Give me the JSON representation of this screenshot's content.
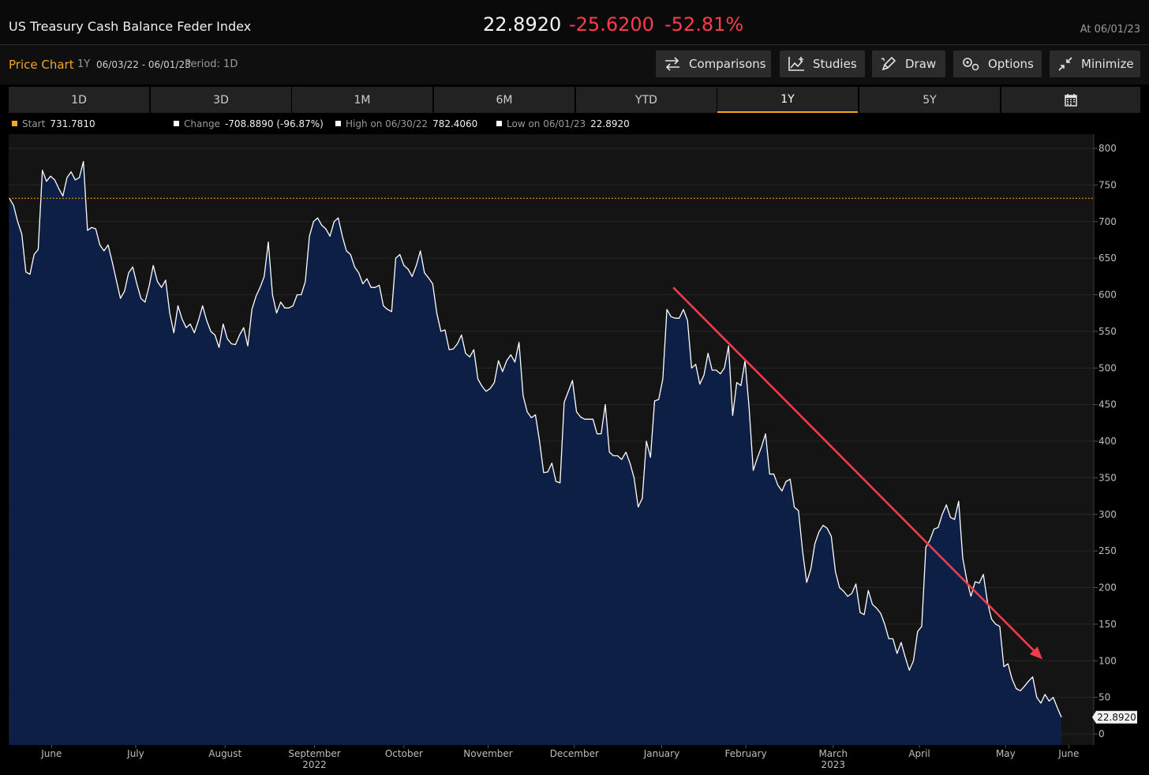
{
  "header": {
    "title": "US Treasury Cash Balance Feder Index",
    "last_value": "22.8920",
    "net_change": "-25.6200",
    "pct_change": "-52.81%",
    "as_of": "At 06/01/23"
  },
  "toolbar": {
    "label": "Price Chart",
    "period": "1Y",
    "range": "06/03/22 - 06/01/23",
    "resolution": "Period: 1D",
    "buttons": [
      {
        "label": "Comparisons",
        "icon": "swap-arrows-icon"
      },
      {
        "label": "Studies",
        "icon": "chart-plus-icon"
      },
      {
        "label": "Draw",
        "icon": "pencil-icon"
      },
      {
        "label": "Options",
        "icon": "gears-icon"
      },
      {
        "label": "Minimize",
        "icon": "minimize-arrows-icon"
      }
    ]
  },
  "tabs": [
    {
      "label": "1D",
      "active": false
    },
    {
      "label": "3D",
      "active": false
    },
    {
      "label": "1M",
      "active": false
    },
    {
      "label": "6M",
      "active": false
    },
    {
      "label": "YTD",
      "active": false
    },
    {
      "label": "1Y",
      "active": true
    },
    {
      "label": "5Y",
      "active": false
    },
    {
      "label": "",
      "icon": "calendar-icon",
      "active": false
    }
  ],
  "legend": [
    {
      "key": "Start",
      "value": "731.7810",
      "color": "#f5a623"
    },
    {
      "key": "Change",
      "value": "-708.8890 (-96.87%)",
      "color": "#ffffff"
    },
    {
      "key": "High on 06/30/22",
      "value": "782.4060",
      "color": "#ffffff"
    },
    {
      "key": "Low on 06/01/23",
      "value": "22.8920",
      "color": "#ffffff"
    }
  ],
  "colors": {
    "fill": "#0d1f44",
    "line": "#ffffff",
    "start_line": "#f5a623",
    "trend_arrow": "#ef3b4b",
    "accent": "#f5a623",
    "negative": "#ff3b4e"
  },
  "chart_data": {
    "type": "area",
    "ylim": [
      0,
      800
    ],
    "yticks": [
      0,
      50,
      100,
      150,
      200,
      250,
      300,
      350,
      400,
      450,
      500,
      550,
      600,
      650,
      700,
      750,
      800
    ],
    "grid": true,
    "start_reference": 731.781,
    "last_label": "22.8920",
    "x_tick_labels": [
      {
        "label": "June",
        "t": 0.04
      },
      {
        "label": "July",
        "t": 0.12
      },
      {
        "label": "August",
        "t": 0.205
      },
      {
        "label": "September",
        "sub": "2022",
        "t": 0.29
      },
      {
        "label": "October",
        "t": 0.375
      },
      {
        "label": "November",
        "t": 0.455
      },
      {
        "label": "December",
        "t": 0.537
      },
      {
        "label": "January",
        "t": 0.62
      },
      {
        "label": "February",
        "t": 0.7
      },
      {
        "label": "March",
        "sub": "2023",
        "t": 0.783
      },
      {
        "label": "April",
        "t": 0.865
      },
      {
        "label": "May",
        "t": 0.947
      },
      {
        "label": "June",
        "t": 1.007
      }
    ],
    "series": [
      {
        "values": [
          731.8,
          722,
          700,
          683,
          631,
          628,
          655,
          662,
          770,
          755,
          762,
          757,
          745,
          735,
          760,
          768,
          757,
          760,
          782,
          688,
          692,
          690,
          668,
          660,
          668,
          645,
          620,
          595,
          605,
          630,
          638,
          615,
          595,
          590,
          612,
          640,
          618,
          610,
          620,
          575,
          548,
          585,
          567,
          555,
          560,
          548,
          565,
          585,
          565,
          550,
          545,
          528,
          560,
          540,
          533,
          532,
          545,
          555,
          530,
          580,
          598,
          610,
          625,
          672,
          600,
          575,
          590,
          582,
          582,
          585,
          600,
          600,
          618,
          680,
          700,
          705,
          695,
          690,
          680,
          700,
          705,
          680,
          660,
          655,
          638,
          630,
          615,
          622,
          610,
          610,
          613,
          585,
          580,
          577,
          650,
          655,
          640,
          635,
          625,
          640,
          660,
          630,
          623,
          615,
          575,
          550,
          552,
          525,
          526,
          533,
          545,
          520,
          515,
          525,
          485,
          475,
          468,
          472,
          480,
          510,
          495,
          510,
          518,
          508,
          535,
          462,
          440,
          432,
          436,
          400,
          357,
          358,
          370,
          345,
          343,
          453,
          468,
          483,
          440,
          433,
          430,
          430,
          430,
          410,
          410,
          450,
          385,
          380,
          380,
          375,
          385,
          370,
          350,
          310,
          322,
          400,
          378,
          455,
          457,
          485,
          580,
          570,
          568,
          568,
          580,
          565,
          500,
          505,
          478,
          490,
          520,
          497,
          497,
          492,
          500,
          530,
          435,
          480,
          476,
          510,
          445,
          360,
          377,
          392,
          410,
          355,
          355,
          340,
          332,
          345,
          348,
          310,
          305,
          250,
          207,
          225,
          260,
          276,
          285,
          281,
          270,
          222,
          200,
          195,
          188,
          192,
          205,
          166,
          163,
          196,
          177,
          172,
          165,
          150,
          130,
          130,
          110,
          125,
          105,
          87,
          100,
          140,
          147,
          255,
          265,
          280,
          282,
          300,
          313,
          296,
          293,
          318,
          240,
          210,
          188,
          208,
          206,
          218,
          180,
          157,
          150,
          147,
          92,
          96,
          75,
          62,
          59,
          65,
          72,
          78,
          50,
          42,
          54,
          45,
          50,
          36,
          22.892
        ]
      }
    ],
    "annotations": [
      {
        "type": "trend-arrow",
        "from": {
          "t": 0.631,
          "y": 610
        },
        "to": {
          "t": 0.982,
          "y": 102
        }
      }
    ]
  }
}
